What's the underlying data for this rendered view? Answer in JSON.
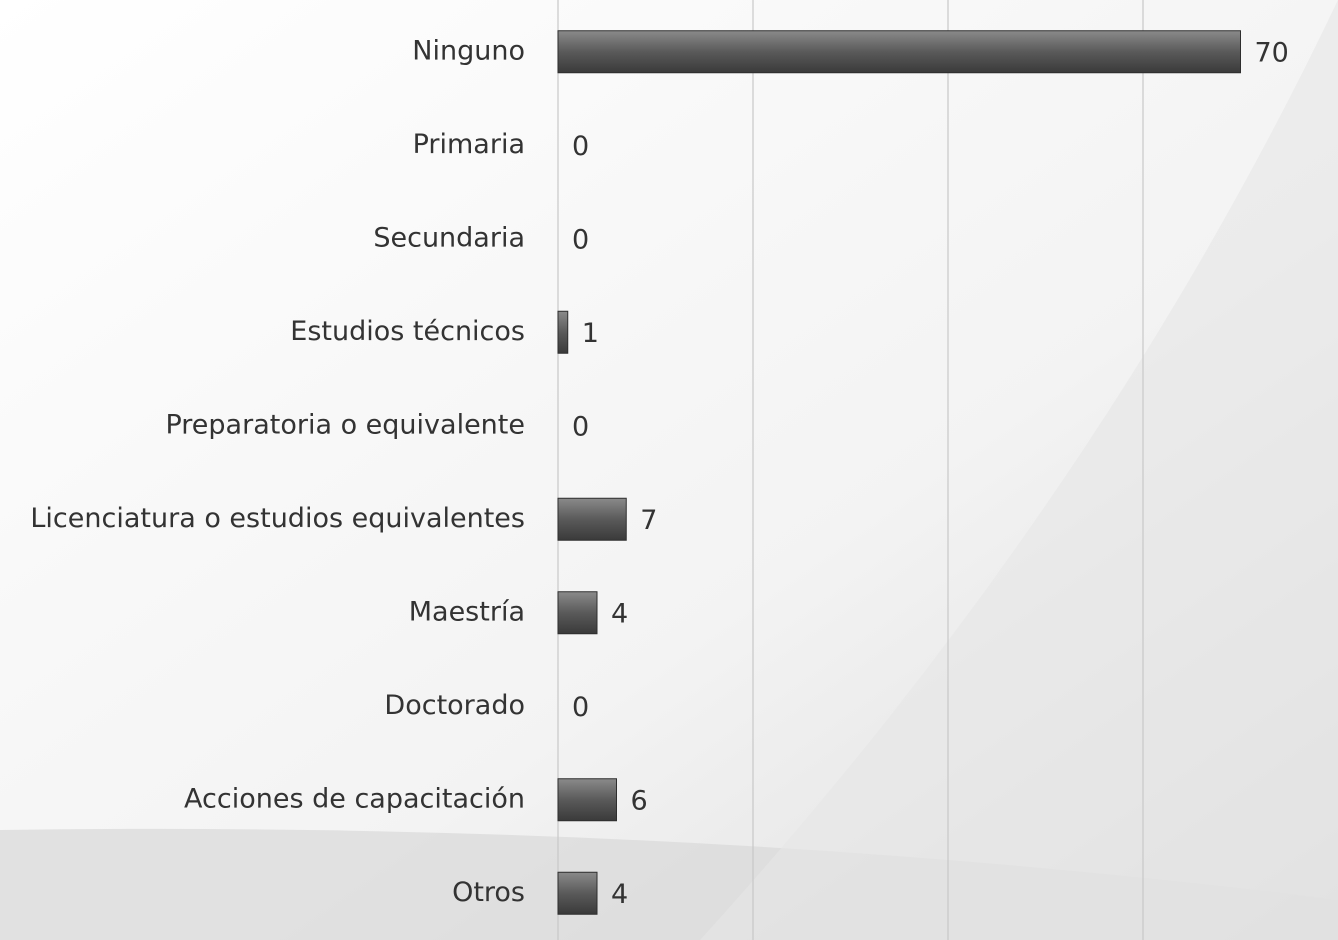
{
  "chart_data": {
    "type": "bar",
    "orientation": "horizontal",
    "categories": [
      "Ninguno",
      "Primaria",
      "Secundaria",
      "Estudios técnicos",
      "Preparatoria o equivalente",
      "Licenciatura o estudios equivalentes",
      "Maestría",
      "Doctorado",
      "Acciones de capacitación",
      "Otros"
    ],
    "values": [
      70,
      0,
      0,
      1,
      0,
      7,
      4,
      0,
      6,
      4
    ],
    "color": "#5a5a5a",
    "xlim": [
      0,
      80
    ],
    "xticks": [
      0,
      20,
      40,
      60
    ],
    "grid": true
  }
}
